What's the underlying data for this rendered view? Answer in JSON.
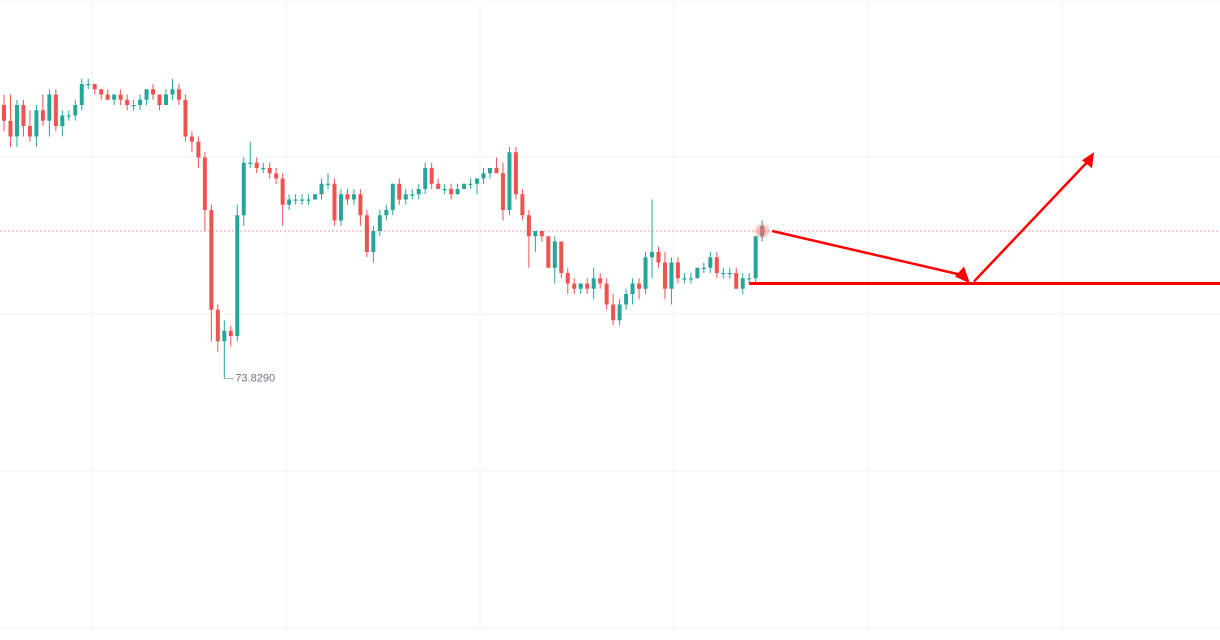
{
  "chart_data": {
    "type": "candlestick",
    "title": "",
    "xlabel": "",
    "ylabel": "",
    "ylim": [
      73.35,
      74.55
    ],
    "grid": true,
    "colors": {
      "up": "#26a69a",
      "down": "#ef5350",
      "grid": "#eef0f3",
      "price_line": "#f0a0a8",
      "annotation": "#ff0000",
      "label": "#6b7280"
    },
    "low_label": {
      "text": "73.8290",
      "value": 73.829
    },
    "current_price": 74.11,
    "support_level": 74.01,
    "annotation_arrows": [
      {
        "from": [
          74.11
        ],
        "to": [
          74.01
        ],
        "direction": "down"
      },
      {
        "from": [
          74.01
        ],
        "to": [
          74.26
        ],
        "direction": "up"
      }
    ],
    "candles": [
      [
        74.35,
        74.37,
        74.3,
        74.32
      ],
      [
        74.32,
        74.37,
        74.27,
        74.29
      ],
      [
        74.29,
        74.36,
        74.27,
        74.35
      ],
      [
        74.35,
        74.36,
        74.29,
        74.31
      ],
      [
        74.31,
        74.34,
        74.28,
        74.29
      ],
      [
        74.29,
        74.35,
        74.27,
        74.34
      ],
      [
        74.34,
        74.37,
        74.31,
        74.32
      ],
      [
        74.32,
        74.38,
        74.29,
        74.37
      ],
      [
        74.37,
        74.38,
        74.3,
        74.31
      ],
      [
        74.31,
        74.34,
        74.29,
        74.33
      ],
      [
        74.33,
        74.34,
        74.32,
        74.33
      ],
      [
        74.33,
        74.36,
        74.32,
        74.35
      ],
      [
        74.35,
        74.4,
        74.34,
        74.39
      ],
      [
        74.39,
        74.4,
        74.38,
        74.39
      ],
      [
        74.39,
        74.39,
        74.37,
        74.38
      ],
      [
        74.38,
        74.38,
        74.36,
        74.37
      ],
      [
        74.37,
        74.38,
        74.36,
        74.36
      ],
      [
        74.36,
        74.37,
        74.35,
        74.37
      ],
      [
        74.37,
        74.38,
        74.35,
        74.36
      ],
      [
        74.36,
        74.37,
        74.34,
        74.35
      ],
      [
        74.35,
        74.36,
        74.34,
        74.35
      ],
      [
        74.35,
        74.37,
        74.34,
        74.36
      ],
      [
        74.36,
        74.38,
        74.35,
        74.38
      ],
      [
        74.38,
        74.39,
        74.36,
        74.37
      ],
      [
        74.37,
        74.37,
        74.34,
        74.35
      ],
      [
        74.35,
        74.38,
        74.35,
        74.37
      ],
      [
        74.37,
        74.4,
        74.36,
        74.38
      ],
      [
        74.38,
        74.39,
        74.35,
        74.36
      ],
      [
        74.36,
        74.37,
        74.28,
        74.29
      ],
      [
        74.29,
        74.3,
        74.26,
        74.28
      ],
      [
        74.28,
        74.29,
        74.23,
        74.25
      ],
      [
        74.25,
        74.26,
        74.11,
        74.15
      ],
      [
        74.15,
        74.16,
        73.9,
        73.96
      ],
      [
        73.96,
        73.97,
        73.88,
        73.9
      ],
      [
        73.9,
        73.94,
        73.83,
        73.92
      ],
      [
        73.92,
        73.93,
        73.89,
        73.91
      ],
      [
        73.91,
        74.16,
        73.9,
        74.14
      ],
      [
        74.14,
        74.25,
        74.12,
        74.24
      ],
      [
        74.24,
        74.28,
        74.23,
        74.24
      ],
      [
        74.24,
        74.25,
        74.22,
        74.23
      ],
      [
        74.23,
        74.24,
        74.22,
        74.23
      ],
      [
        74.23,
        74.24,
        74.21,
        74.22
      ],
      [
        74.22,
        74.23,
        74.2,
        74.21
      ],
      [
        74.21,
        74.22,
        74.12,
        74.16
      ],
      [
        74.16,
        74.18,
        74.15,
        74.17
      ],
      [
        74.17,
        74.18,
        74.16,
        74.17
      ],
      [
        74.17,
        74.18,
        74.16,
        74.17
      ],
      [
        74.17,
        74.18,
        74.16,
        74.17
      ],
      [
        74.17,
        74.18,
        74.17,
        74.18
      ],
      [
        74.18,
        74.21,
        74.17,
        74.2
      ],
      [
        74.2,
        74.22,
        74.19,
        74.2
      ],
      [
        74.2,
        74.21,
        74.12,
        74.13
      ],
      [
        74.13,
        74.19,
        74.12,
        74.18
      ],
      [
        74.18,
        74.19,
        74.16,
        74.17
      ],
      [
        74.17,
        74.19,
        74.16,
        74.18
      ],
      [
        74.18,
        74.19,
        74.12,
        74.14
      ],
      [
        74.14,
        74.15,
        74.06,
        74.07
      ],
      [
        74.07,
        74.12,
        74.05,
        74.11
      ],
      [
        74.11,
        74.15,
        74.1,
        74.14
      ],
      [
        74.14,
        74.16,
        74.13,
        74.15
      ],
      [
        74.15,
        74.2,
        74.14,
        74.2
      ],
      [
        74.2,
        74.21,
        74.16,
        74.17
      ],
      [
        74.17,
        74.19,
        74.16,
        74.18
      ],
      [
        74.18,
        74.19,
        74.17,
        74.18
      ],
      [
        74.18,
        74.2,
        74.17,
        74.19
      ],
      [
        74.19,
        74.24,
        74.18,
        74.23
      ],
      [
        74.23,
        74.24,
        74.19,
        74.2
      ],
      [
        74.2,
        74.21,
        74.19,
        74.19
      ],
      [
        74.19,
        74.2,
        74.18,
        74.19
      ],
      [
        74.19,
        74.2,
        74.17,
        74.18
      ],
      [
        74.18,
        74.2,
        74.18,
        74.19
      ],
      [
        74.19,
        74.2,
        74.19,
        74.2
      ],
      [
        74.2,
        74.21,
        74.19,
        74.2
      ],
      [
        74.2,
        74.21,
        74.18,
        74.21
      ],
      [
        74.21,
        74.23,
        74.2,
        74.22
      ],
      [
        74.22,
        74.23,
        74.21,
        74.23
      ],
      [
        74.23,
        74.25,
        74.22,
        74.22
      ],
      [
        74.22,
        74.24,
        74.13,
        74.15
      ],
      [
        74.15,
        74.27,
        74.14,
        74.26
      ],
      [
        74.26,
        74.27,
        74.17,
        74.18
      ],
      [
        74.18,
        74.19,
        74.13,
        74.14
      ],
      [
        74.14,
        74.15,
        74.04,
        74.1
      ],
      [
        74.1,
        74.11,
        74.07,
        74.11
      ],
      [
        74.11,
        74.11,
        74.09,
        74.1
      ],
      [
        74.1,
        74.1,
        74.04,
        74.04
      ],
      [
        74.04,
        74.1,
        74.01,
        74.09
      ],
      [
        74.09,
        74.09,
        74.02,
        74.03
      ],
      [
        74.03,
        74.04,
        73.99,
        74.01
      ],
      [
        74.01,
        74.02,
        73.99,
        74.0
      ],
      [
        74.0,
        74.01,
        73.99,
        74.01
      ],
      [
        74.01,
        74.02,
        73.99,
        74.0
      ],
      [
        74.0,
        74.04,
        73.98,
        74.02
      ],
      [
        74.02,
        74.03,
        74.0,
        74.01
      ],
      [
        74.01,
        74.02,
        73.96,
        73.97
      ],
      [
        73.97,
        73.99,
        73.93,
        73.94
      ],
      [
        73.94,
        73.98,
        73.93,
        73.97
      ],
      [
        73.97,
        74.0,
        73.96,
        73.99
      ],
      [
        73.99,
        74.02,
        73.97,
        74.01
      ],
      [
        74.01,
        74.02,
        73.98,
        74.0
      ],
      [
        74.0,
        74.07,
        73.99,
        74.06
      ],
      [
        74.06,
        74.17,
        74.02,
        74.07
      ],
      [
        74.07,
        74.08,
        74.04,
        74.05
      ],
      [
        74.05,
        74.07,
        73.98,
        74.0
      ],
      [
        74.0,
        74.06,
        73.97,
        74.05
      ],
      [
        74.05,
        74.06,
        74.01,
        74.02
      ],
      [
        74.02,
        74.03,
        74.01,
        74.02
      ],
      [
        74.02,
        74.03,
        74.01,
        74.02
      ],
      [
        74.02,
        74.04,
        74.02,
        74.04
      ],
      [
        74.04,
        74.05,
        74.03,
        74.04
      ],
      [
        74.04,
        74.07,
        74.03,
        74.06
      ],
      [
        74.06,
        74.07,
        74.02,
        74.03
      ],
      [
        74.03,
        74.04,
        74.02,
        74.03
      ],
      [
        74.03,
        74.04,
        74.02,
        74.03
      ],
      [
        74.03,
        74.04,
        74.0,
        74.0
      ],
      [
        74.0,
        74.03,
        73.99,
        74.02
      ],
      [
        74.02,
        74.03,
        74.01,
        74.02
      ],
      [
        74.02,
        74.1,
        74.01,
        74.1
      ],
      [
        74.1,
        74.13,
        74.09,
        74.12
      ]
    ]
  }
}
